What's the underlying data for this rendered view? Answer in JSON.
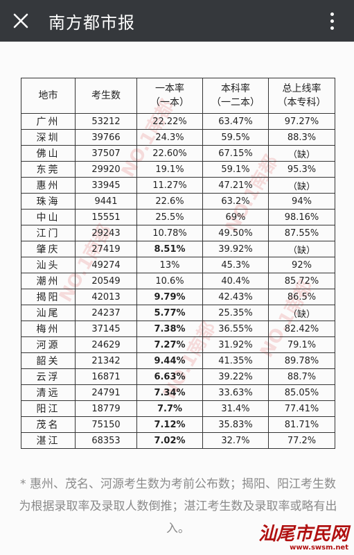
{
  "header": {
    "title": "南方都市报"
  },
  "table": {
    "headers": [
      [
        "地市",
        ""
      ],
      [
        "考生数",
        ""
      ],
      [
        "一本率",
        "（一本）"
      ],
      [
        "本科率",
        "（一二本）"
      ],
      [
        "总上线率",
        "（本专科）"
      ]
    ],
    "rows": [
      {
        "city": "广州",
        "count": "53212",
        "first": "22.22%",
        "bachelor": "63.47%",
        "total": "97.27%"
      },
      {
        "city": "深圳",
        "count": "39766",
        "first": "24.3%",
        "bachelor": "59.5%",
        "total": "88.3%"
      },
      {
        "city": "佛山",
        "count": "37507",
        "first": "22.60%",
        "bachelor": "67.15%",
        "total": "（缺）"
      },
      {
        "city": "东莞",
        "count": "29920",
        "first": "19.1%",
        "bachelor": "59.1%",
        "total": "95.3%"
      },
      {
        "city": "惠州",
        "count": "33945",
        "first": "11.27%",
        "bachelor": "47.21%",
        "total": "（缺）"
      },
      {
        "city": "珠海",
        "count": "9441",
        "first": "22.6%",
        "bachelor": "63.2%",
        "total": "94%"
      },
      {
        "city": "中山",
        "count": "15551",
        "first": "25.5%",
        "bachelor": "69%",
        "total": "98.16%"
      },
      {
        "city": "江门",
        "count": "29243",
        "first": "10.78%",
        "bachelor": "49.50%",
        "total": "87.55%"
      },
      {
        "city": "肇庆",
        "count": "27419",
        "first": "8.51%",
        "bachelor": "39.92%",
        "total": "（缺）",
        "bold": true
      },
      {
        "city": "汕头",
        "count": "49274",
        "first": "13%",
        "bachelor": "45.3%",
        "total": "92%"
      },
      {
        "city": "潮州",
        "count": "20549",
        "first": "10.6%",
        "bachelor": "40.4%",
        "total": "85.72%"
      },
      {
        "city": "揭阳",
        "count": "42013",
        "first": "9.79%",
        "bachelor": "42.43%",
        "total": "86.5%",
        "bold": true
      },
      {
        "city": "汕尾",
        "count": "24237",
        "first": "5.77%",
        "bachelor": "25.35%",
        "total": "（缺）",
        "bold": true
      },
      {
        "city": "梅州",
        "count": "37145",
        "first": "7.38%",
        "bachelor": "36.55%",
        "total": "82.42%",
        "bold": true
      },
      {
        "city": "河源",
        "count": "24629",
        "first": "7.27%",
        "bachelor": "31.92%",
        "total": "79.1%",
        "bold": true
      },
      {
        "city": "韶关",
        "count": "21342",
        "first": "9.44%",
        "bachelor": "41.35%",
        "total": "89.78%",
        "bold": true
      },
      {
        "city": "云浮",
        "count": "16871",
        "first": "6.63%",
        "bachelor": "39.22%",
        "total": "88.7%",
        "bold": true
      },
      {
        "city": "清远",
        "count": "24791",
        "first": "7.34%",
        "bachelor": "33.63%",
        "total": "85.05%",
        "bold": true
      },
      {
        "city": "阳江",
        "count": "18779",
        "first": "7.7%",
        "bachelor": "31.4%",
        "total": "77.41%",
        "bold": true
      },
      {
        "city": "茂名",
        "count": "75150",
        "first": "7.12%",
        "bachelor": "35.83%",
        "total": "81.71%",
        "bold": true
      },
      {
        "city": "湛江",
        "count": "68353",
        "first": "7.02%",
        "bachelor": "32.7%",
        "total": "77.2%",
        "bold": true
      }
    ]
  },
  "note": {
    "text": "* 惠州、茂名、河源考生数为考前公布数；揭阳、阳江考生数为根据录取率及录取人数倒推；湛江考生数及录取率或略有出入。"
  },
  "logo": {
    "name": "汕尾市民网",
    "url": "www.swsm.net"
  },
  "icons": {
    "close": "close-icon",
    "more": "more-vertical-icon"
  }
}
